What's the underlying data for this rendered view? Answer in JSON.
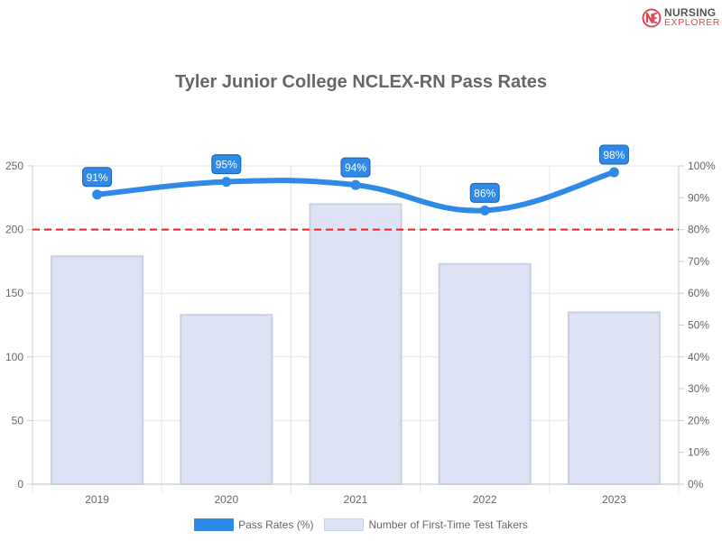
{
  "logo": {
    "line1": "NURSING",
    "line2": "EXPLORER",
    "brand_color": "#d94a55"
  },
  "colors": {
    "line": "#2e8ae6",
    "bar_fill": "#dde3f5",
    "bar_border": "#c8cfe0",
    "reference_line": "#e0212a",
    "label_fill": "#2e8ae6",
    "label_border": "#1a5fb0"
  },
  "chart_data": {
    "type": "bar+line",
    "title": "Tyler Junior College NCLEX-RN Pass Rates",
    "categories": [
      "2019",
      "2020",
      "2021",
      "2022",
      "2023"
    ],
    "series": [
      {
        "name": "Pass Rates (%)",
        "type": "line",
        "axis": "right",
        "values": [
          91,
          95,
          94,
          86,
          98
        ],
        "data_labels": [
          "91%",
          "95%",
          "94%",
          "86%",
          "98%"
        ]
      },
      {
        "name": "Number of First-Time Test Takers",
        "type": "bar",
        "axis": "left",
        "values": [
          179,
          133,
          220,
          173,
          135
        ]
      }
    ],
    "reference_line": {
      "axis": "right",
      "value": 80,
      "style": "dashed"
    },
    "y_left": {
      "ylim": [
        0,
        250
      ],
      "ticks": [
        0,
        50,
        100,
        150,
        200,
        250
      ],
      "tick_labels": [
        "0",
        "50",
        "100",
        "150",
        "200",
        "250"
      ]
    },
    "y_right": {
      "ylim": [
        0,
        100
      ],
      "ticks": [
        0,
        10,
        20,
        30,
        40,
        50,
        60,
        70,
        80,
        90,
        100
      ],
      "tick_labels": [
        "0%",
        "10%",
        "20%",
        "30%",
        "40%",
        "50%",
        "60%",
        "70%",
        "80%",
        "90%",
        "100%"
      ]
    },
    "grid": true,
    "legend_position": "bottom"
  }
}
